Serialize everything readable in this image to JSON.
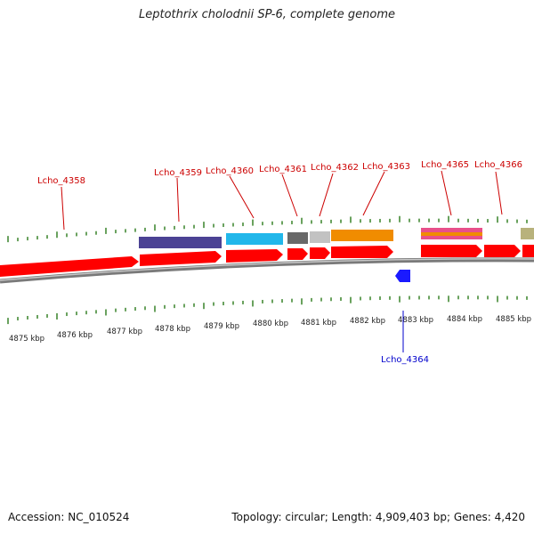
{
  "title": "Leptothrix cholodnii SP-6, complete genome",
  "footer": {
    "accession": "Accession: NC_010524",
    "topology": "Topology: circular; Length: 4,909,403 bp; Genes: 4,420"
  },
  "scale_labels": [
    "4875 kbp",
    "4876 kbp",
    "4877 kbp",
    "4878 kbp",
    "4879 kbp",
    "4880 kbp",
    "4881 kbp",
    "4882 kbp",
    "4883 kbp",
    "4884 kbp",
    "4885 kbp"
  ],
  "labeled_genes": [
    {
      "label": "Lcho_4358",
      "strand": "+"
    },
    {
      "label": "Lcho_4359",
      "strand": "+"
    },
    {
      "label": "Lcho_4360",
      "strand": "+"
    },
    {
      "label": "Lcho_4361",
      "strand": "+"
    },
    {
      "label": "Lcho_4362",
      "strand": "+"
    },
    {
      "label": "Lcho_4363",
      "strand": "+"
    },
    {
      "label": "Lcho_4364",
      "strand": "-"
    },
    {
      "label": "Lcho_4365",
      "strand": "+"
    },
    {
      "label": "Lcho_4366",
      "strand": "+"
    }
  ],
  "colors": {
    "forward_cds": "#ff0000",
    "reverse_cds": "#1a1aff",
    "ticks": "#2a7a1a",
    "backbone": "#808080",
    "label_forward": "#cc0000",
    "label_reverse": "#0000cc",
    "feature_colors": [
      "#4b4294",
      "#22b7ea",
      "#686868",
      "#c2c2c2",
      "#f08c00",
      "#e8508a",
      "#b8b27c"
    ]
  }
}
